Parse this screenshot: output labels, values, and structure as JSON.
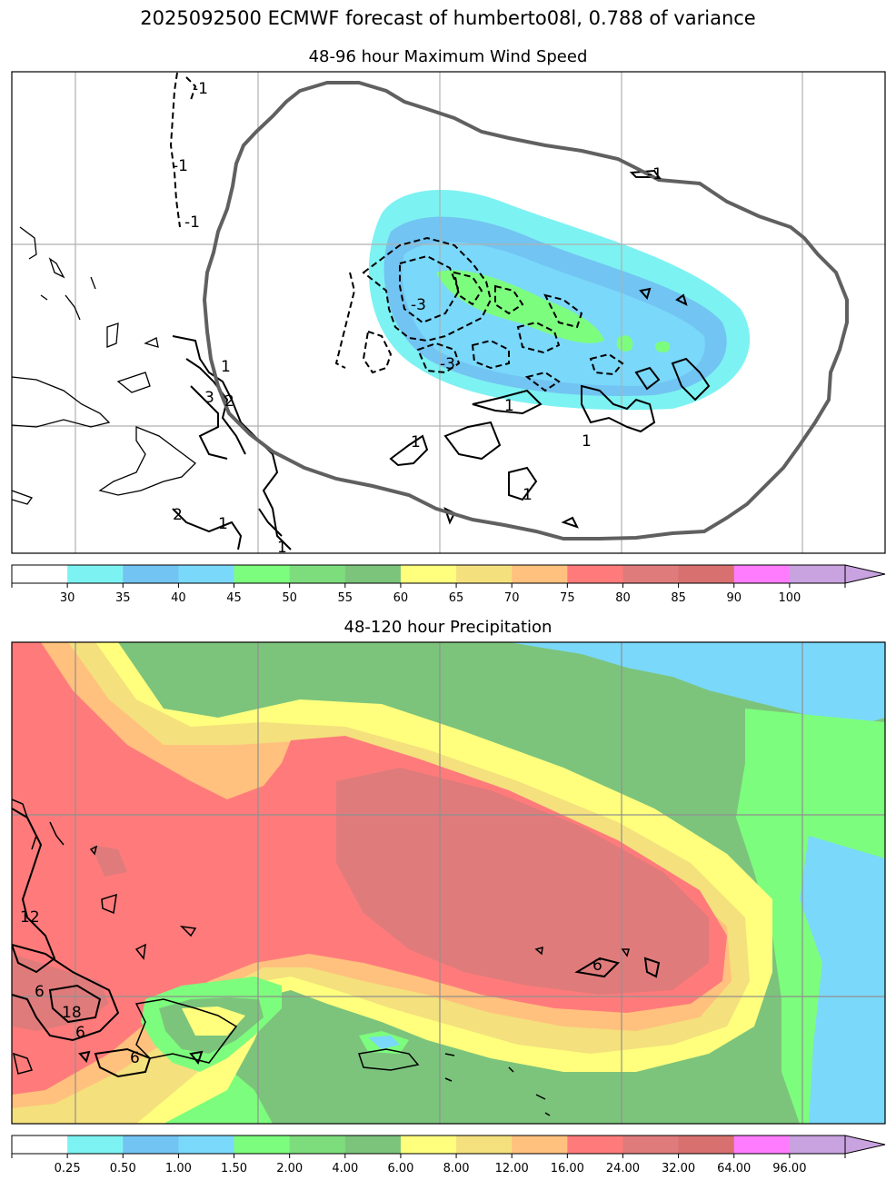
{
  "figure": {
    "title": "2025092500 ECMWF forecast of humberto08l, 0.788 of variance"
  },
  "chart_data": [
    {
      "type": "heatmap",
      "title": "48-96 hour Maximum Wind Speed",
      "colorbar": {
        "ticks": [
          "30",
          "35",
          "40",
          "45",
          "50",
          "55",
          "60",
          "65",
          "70",
          "75",
          "80",
          "85",
          "90",
          "100"
        ],
        "colors": [
          "#ffffff",
          "#7df2f2",
          "#72c4f2",
          "#7ad8fb",
          "#7dfd7d",
          "#7ddd7d",
          "#7cc47c",
          "#ffff7d",
          "#f4e07d",
          "#ffc17d",
          "#ff7b7b",
          "#e07b7b",
          "#d87070",
          "#ff7cff",
          "#c9a2e0"
        ],
        "extend": "max"
      },
      "contour_labels": [
        "-1",
        "-1",
        "-1",
        "-1",
        "-3",
        "-3",
        "1",
        "1",
        "1",
        "1",
        "1",
        "1",
        "1",
        "3",
        "2",
        "2"
      ]
    },
    {
      "type": "heatmap",
      "title": "48-120 hour Precipitation",
      "colorbar": {
        "ticks": [
          "0.25",
          "0.50",
          "1.00",
          "1.50",
          "2.00",
          "4.00",
          "6.00",
          "8.00",
          "12.00",
          "16.00",
          "24.00",
          "32.00",
          "64.00",
          "96.00"
        ],
        "colors": [
          "#ffffff",
          "#7df2f2",
          "#72c4f2",
          "#7ad8fb",
          "#7dfd7d",
          "#7ddd7d",
          "#7cc47c",
          "#ffff7d",
          "#f4e07d",
          "#ffc17d",
          "#ff7b7b",
          "#e07b7b",
          "#d87070",
          "#ff7cff",
          "#c9a2e0"
        ],
        "extend": "max"
      },
      "contour_labels": [
        "12",
        "6",
        "6",
        "18",
        "6",
        "6"
      ]
    }
  ]
}
